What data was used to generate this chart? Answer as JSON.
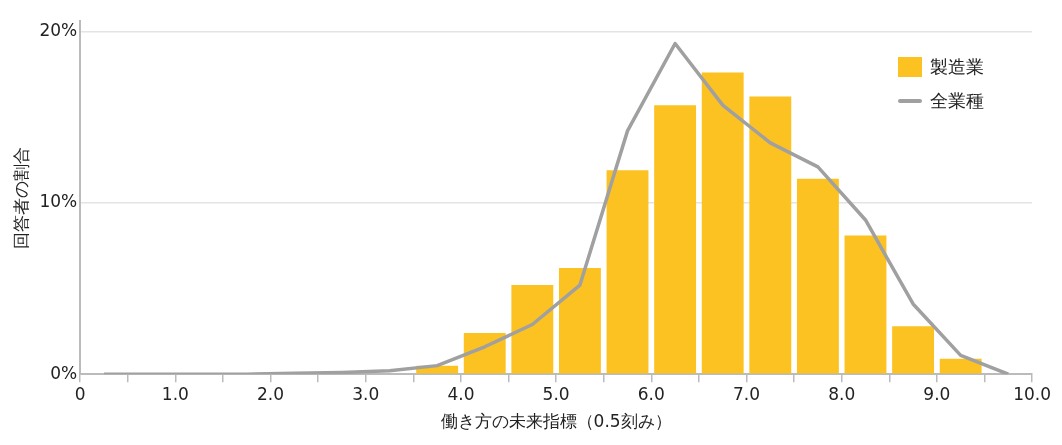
{
  "chart_data": {
    "type": "histogram",
    "xlabel": "働き方の未来指標（0.5刻み）",
    "ylabel": "回答者の割合",
    "bins": [
      3.5,
      4.0,
      4.5,
      5.0,
      5.5,
      6.0,
      6.5,
      7.0,
      7.5,
      8.0,
      8.5,
      9.0,
      9.5
    ],
    "series": [
      {
        "name": "製造業",
        "color": "#fcc221",
        "values": [
          0.5,
          2.4,
          5.2,
          6.2,
          11.9,
          15.7,
          17.6,
          16.2,
          11.4,
          8.1,
          2.8,
          0.9
        ]
      },
      {
        "type": "line",
        "name": "全業種",
        "color": "#a0a0a0",
        "x": [
          0.25,
          0.75,
          1.25,
          1.75,
          2.25,
          2.75,
          3.25,
          3.75,
          4.25,
          4.75,
          5.25,
          5.75,
          6.25,
          6.75,
          7.25,
          7.75,
          8.25,
          8.75,
          9.25,
          9.75
        ],
        "values": [
          0,
          0,
          0,
          0,
          0.05,
          0.1,
          0.2,
          0.5,
          1.6,
          2.9,
          5.2,
          14.2,
          19.3,
          15.7,
          13.5,
          12.1,
          9.0,
          4.1,
          1.1,
          0
        ]
      }
    ],
    "xlim": [
      0,
      10
    ],
    "xticks": [
      0,
      {
        "value": 0.5,
        "label": null
      },
      {
        "value": 1,
        "label": "1.0"
      },
      {
        "value": 1.5,
        "label": null
      },
      {
        "value": 2,
        "label": "2.0"
      },
      {
        "value": 2.5,
        "label": null
      },
      {
        "value": 3,
        "label": "3.0"
      },
      {
        "value": 3.5,
        "label": null
      },
      {
        "value": 4,
        "label": "4.0"
      },
      {
        "value": 4.5,
        "label": null
      },
      {
        "value": 5,
        "label": "5.0"
      },
      {
        "value": 5.5,
        "label": null
      },
      {
        "value": 6,
        "label": "6.0"
      },
      {
        "value": 6.5,
        "label": null
      },
      {
        "value": 7,
        "label": "7.0"
      },
      {
        "value": 7.5,
        "label": null
      },
      {
        "value": 8,
        "label": "8.0"
      },
      {
        "value": 8.5,
        "label": null
      },
      {
        "value": 9,
        "label": "9.0"
      },
      {
        "value": 9.5,
        "label": null
      },
      {
        "value": 10,
        "label": "10.0"
      }
    ],
    "ylim": [
      0,
      20.6
    ],
    "yticks": [
      {
        "value": 0,
        "label": "0%"
      },
      {
        "value": 10,
        "label": "10%"
      },
      {
        "value": 20,
        "label": "20%"
      }
    ],
    "grid": "y",
    "legend": "top right"
  }
}
